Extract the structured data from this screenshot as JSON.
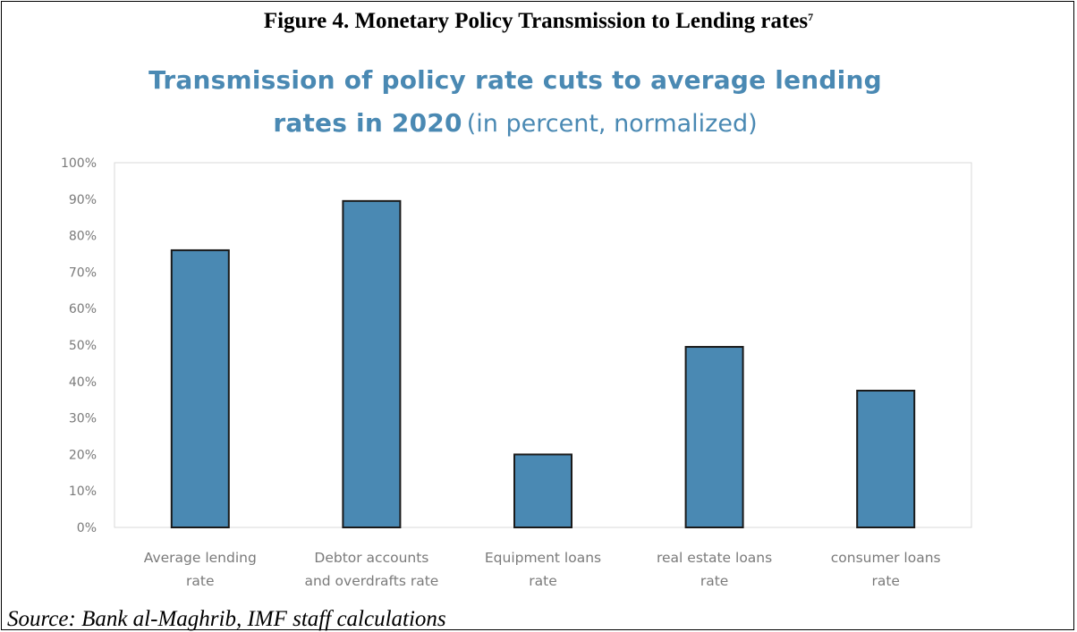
{
  "figure_title": "Figure 4. Monetary Policy Transmission to Lending rates",
  "figure_footnote": "7",
  "source_note": "Source: Bank al-Maghrib, IMF staff calculations",
  "colors": {
    "bar": "#4a89b3",
    "bar_border": "#1a1a1a",
    "title": "#4a89b3",
    "axis_text": "#7a7a7a",
    "plot_border": "#d9d9d9"
  },
  "chart_data": {
    "type": "bar",
    "title_bold": "Transmission of policy rate cuts to average lending",
    "title_bold_line2": "rates in 2020",
    "title_rest": "(in percent, normalized)",
    "categories": [
      [
        "Average lending",
        "rate"
      ],
      [
        "Debtor accounts",
        "and overdrafts rate"
      ],
      [
        "Equipment loans",
        "rate"
      ],
      [
        "real estate loans",
        "rate"
      ],
      [
        "consumer loans",
        "rate"
      ]
    ],
    "values": [
      76,
      89.5,
      20,
      49.5,
      37.5
    ],
    "ylim": [
      0,
      100
    ],
    "yticks": [
      "0%",
      "10%",
      "20%",
      "30%",
      "40%",
      "50%",
      "60%",
      "70%",
      "80%",
      "90%",
      "100%"
    ],
    "grid": false,
    "legend": "none"
  }
}
